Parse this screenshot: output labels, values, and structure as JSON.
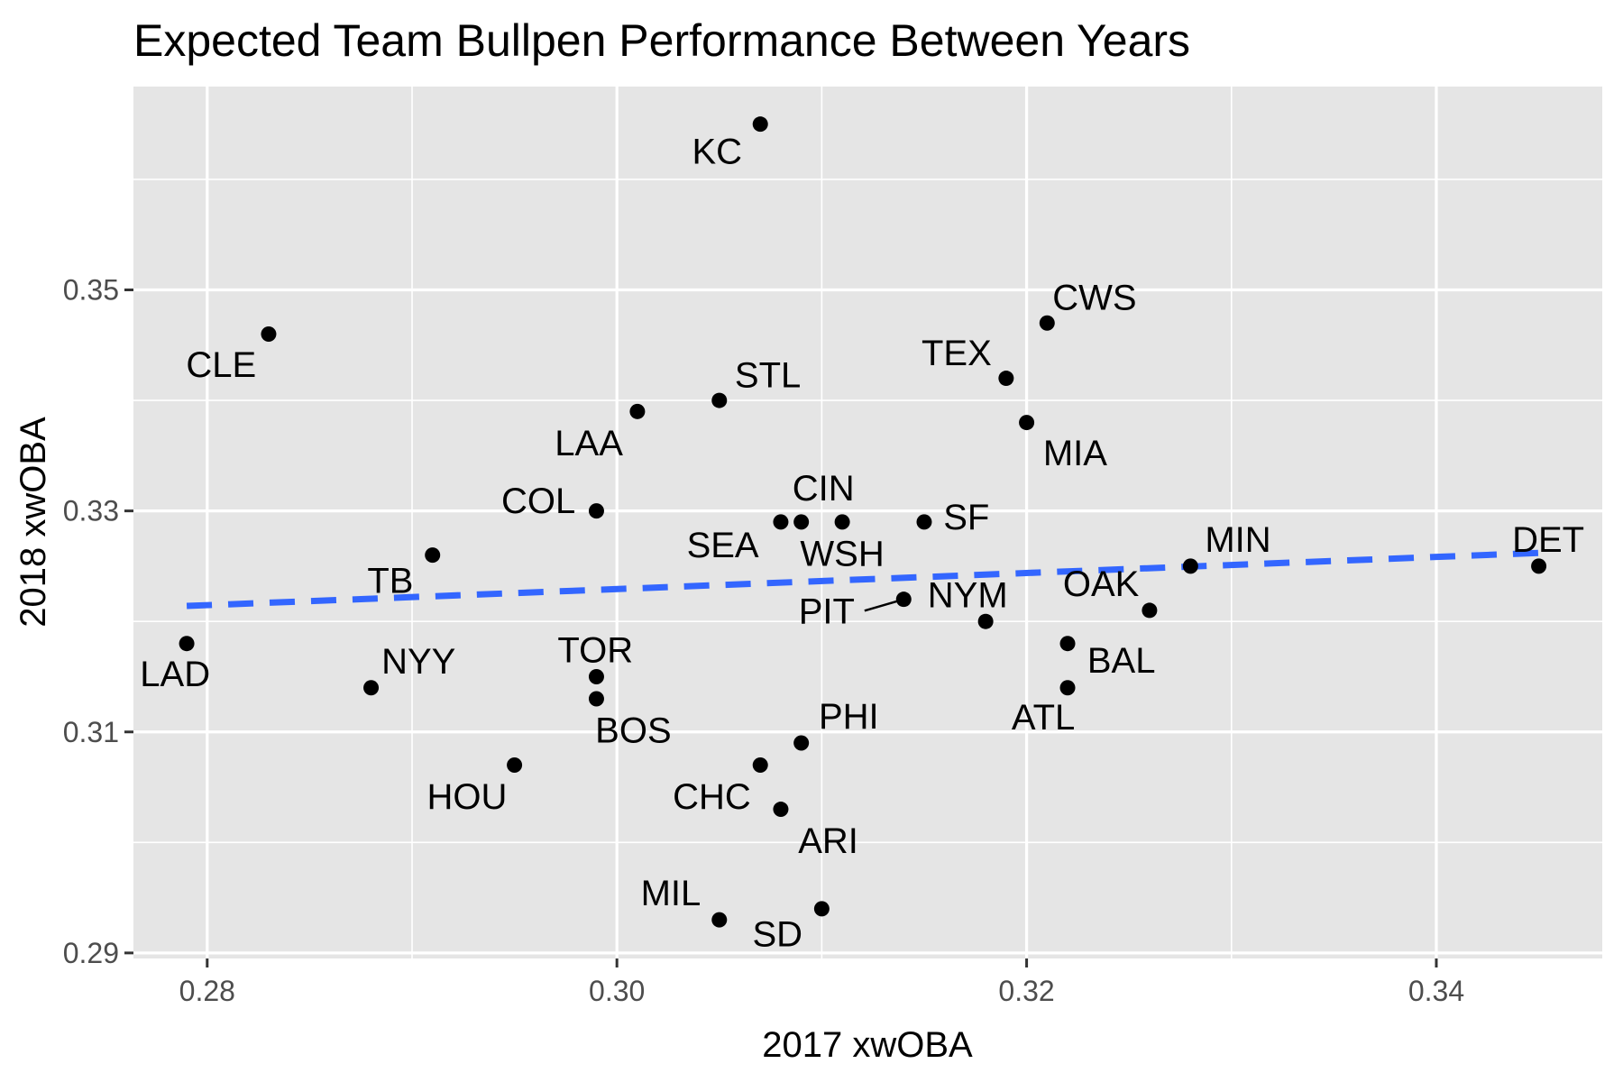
{
  "chart_data": {
    "type": "scatter",
    "title": "Expected Team Bullpen Performance Between Years",
    "xlabel": "2017 xwOBA",
    "ylabel": "2018 xwOBA",
    "xlim": [
      0.2764,
      0.3481
    ],
    "ylim": [
      0.2895,
      0.3684
    ],
    "x_ticks": [
      0.28,
      0.3,
      0.32,
      0.34
    ],
    "x_tick_labels": [
      "0.28",
      "0.30",
      "0.32",
      "0.34"
    ],
    "y_ticks": [
      0.29,
      0.31,
      0.33,
      0.35
    ],
    "y_tick_labels": [
      "0.29",
      "0.31",
      "0.33",
      "0.35"
    ],
    "grid": true,
    "colors": {
      "panel": "#e5e5e5",
      "grid": "#ffffff",
      "point": "#000000",
      "trend": "#3366ff"
    },
    "points": [
      {
        "label": "KC",
        "x": 0.307,
        "y": 0.365
      },
      {
        "label": "CLE",
        "x": 0.283,
        "y": 0.346
      },
      {
        "label": "CWS",
        "x": 0.321,
        "y": 0.347
      },
      {
        "label": "TEX",
        "x": 0.319,
        "y": 0.342
      },
      {
        "label": "STL",
        "x": 0.305,
        "y": 0.34
      },
      {
        "label": "LAA",
        "x": 0.301,
        "y": 0.339
      },
      {
        "label": "MIA",
        "x": 0.32,
        "y": 0.338
      },
      {
        "label": "COL",
        "x": 0.299,
        "y": 0.33
      },
      {
        "label": "SEA",
        "x": 0.308,
        "y": 0.329
      },
      {
        "label": "CIN",
        "x": 0.309,
        "y": 0.329
      },
      {
        "label": "WSH",
        "x": 0.311,
        "y": 0.329
      },
      {
        "label": "SF",
        "x": 0.315,
        "y": 0.329
      },
      {
        "label": "TB",
        "x": 0.291,
        "y": 0.326
      },
      {
        "label": "MIN",
        "x": 0.328,
        "y": 0.325
      },
      {
        "label": "DET",
        "x": 0.345,
        "y": 0.325
      },
      {
        "label": "PIT",
        "x": 0.314,
        "y": 0.322
      },
      {
        "label": "OAK",
        "x": 0.326,
        "y": 0.321
      },
      {
        "label": "NYM",
        "x": 0.318,
        "y": 0.32
      },
      {
        "label": "LAD",
        "x": 0.279,
        "y": 0.318
      },
      {
        "label": "BAL",
        "x": 0.322,
        "y": 0.318
      },
      {
        "label": "TOR",
        "x": 0.299,
        "y": 0.315
      },
      {
        "label": "NYY",
        "x": 0.288,
        "y": 0.314
      },
      {
        "label": "ATL",
        "x": 0.322,
        "y": 0.314
      },
      {
        "label": "BOS",
        "x": 0.299,
        "y": 0.313
      },
      {
        "label": "PHI",
        "x": 0.309,
        "y": 0.309
      },
      {
        "label": "HOU",
        "x": 0.295,
        "y": 0.307
      },
      {
        "label": "CHC",
        "x": 0.307,
        "y": 0.307
      },
      {
        "label": "ARI",
        "x": 0.308,
        "y": 0.303
      },
      {
        "label": "SD",
        "x": 0.31,
        "y": 0.294
      },
      {
        "label": "MIL",
        "x": 0.305,
        "y": 0.293
      }
    ],
    "trend_line": {
      "type": "linear fit",
      "style": "dashed",
      "x": [
        0.279,
        0.345
      ],
      "y": [
        0.3214,
        0.3262
      ]
    }
  }
}
